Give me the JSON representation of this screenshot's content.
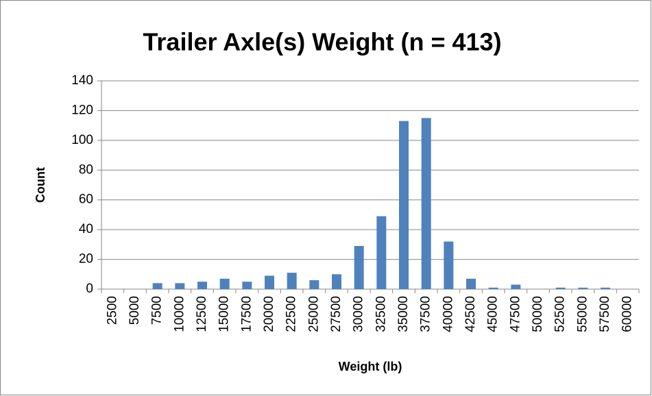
{
  "chart_data": {
    "type": "bar",
    "title": "Trailer Axle(s) Weight (n = 413)",
    "x_label": "Weight (lb)",
    "y_label": "Count",
    "categories": [
      "2500",
      "5000",
      "7500",
      "10000",
      "12500",
      "15000",
      "17500",
      "20000",
      "22500",
      "25000",
      "27500",
      "30000",
      "32500",
      "35000",
      "37500",
      "40000",
      "42500",
      "45000",
      "47500",
      "50000",
      "52500",
      "55000",
      "57500",
      "60000"
    ],
    "values": [
      0,
      0,
      4,
      4,
      5,
      7,
      5,
      9,
      11,
      6,
      10,
      29,
      49,
      113,
      115,
      32,
      7,
      1,
      3,
      0,
      1,
      1,
      1,
      0
    ],
    "color": "#4f81bd",
    "ylim": [
      0,
      140
    ],
    "yticks": [
      0,
      20,
      40,
      60,
      80,
      100,
      120,
      140
    ],
    "grid": true
  }
}
